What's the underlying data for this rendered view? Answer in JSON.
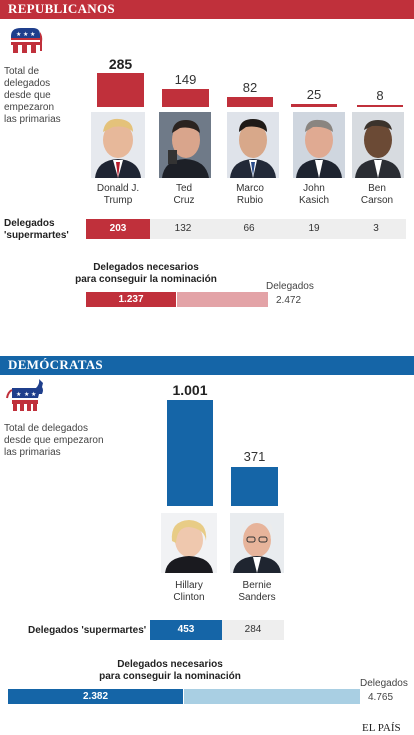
{
  "republicanos": {
    "header": "REPUBLICANOS",
    "color": "#c0303b",
    "light_color": "#e3a3a7",
    "intro_text": [
      "Total de",
      "delegados",
      "desde que",
      "empezaron",
      "las primarias"
    ],
    "candidates": [
      {
        "name_line1": "Donald J.",
        "name_line2": "Trump",
        "delegates": "285",
        "supermartes": "203"
      },
      {
        "name_line1": "Ted",
        "name_line2": "Cruz",
        "delegates": "149",
        "supermartes": "132"
      },
      {
        "name_line1": "Marco",
        "name_line2": "Rubio",
        "delegates": "82",
        "supermartes": "66"
      },
      {
        "name_line1": "John",
        "name_line2": "Kasich",
        "delegates": "25",
        "supermartes": "19"
      },
      {
        "name_line1": "Ben",
        "name_line2": "Carson",
        "delegates": "8",
        "supermartes": "3"
      }
    ],
    "supermartes_label": [
      "Delegados",
      "'supermartes'"
    ],
    "needed_title": [
      "Delegados necesarios",
      "para conseguir la nominación"
    ],
    "needed_value": "1.237",
    "total_label": "Delegados",
    "total_value": "2.472"
  },
  "democratas": {
    "header": "DEMÓCRATAS",
    "color": "#1565a7",
    "light_color": "#a9cfe3",
    "intro_text": [
      "Total de delegados",
      "desde que empezaron",
      "las primarias"
    ],
    "candidates": [
      {
        "name_line1": "Hillary",
        "name_line2": "Clinton",
        "delegates": "1.001",
        "supermartes": "453"
      },
      {
        "name_line1": "Bernie",
        "name_line2": "Sanders",
        "delegates": "371",
        "supermartes": "284"
      }
    ],
    "supermartes_label": "Delegados 'supermartes'",
    "needed_title": [
      "Delegados necesarios",
      "para conseguir la nominación"
    ],
    "needed_value": "2.382",
    "total_label": "Delegados",
    "total_value": "4.765"
  },
  "source": "EL PAÍS",
  "chart_data": [
    {
      "type": "bar",
      "categories": [
        "Donald J. Trump",
        "Ted Cruz",
        "Marco Rubio",
        "John Kasich",
        "Ben Carson"
      ],
      "series": [
        {
          "values": [
            285,
            149,
            82,
            25,
            8
          ]
        },
        {
          "name": "Delegados 'supermartes'",
          "values": [
            203,
            132,
            66,
            19,
            3
          ]
        }
      ],
      "delegates_needed": 1237,
      "delegates_total": 2472
    },
    {
      "type": "bar",
      "categories": [
        "Hillary Clinton",
        "Bernie Sanders"
      ],
      "series": [
        {
          "values": [
            1001,
            371
          ]
        },
        {
          "name": "Delegados 'supermartes'",
          "values": [
            453,
            284
          ]
        }
      ],
      "delegates_needed": 2382,
      "delegates_total": 4765
    }
  ]
}
